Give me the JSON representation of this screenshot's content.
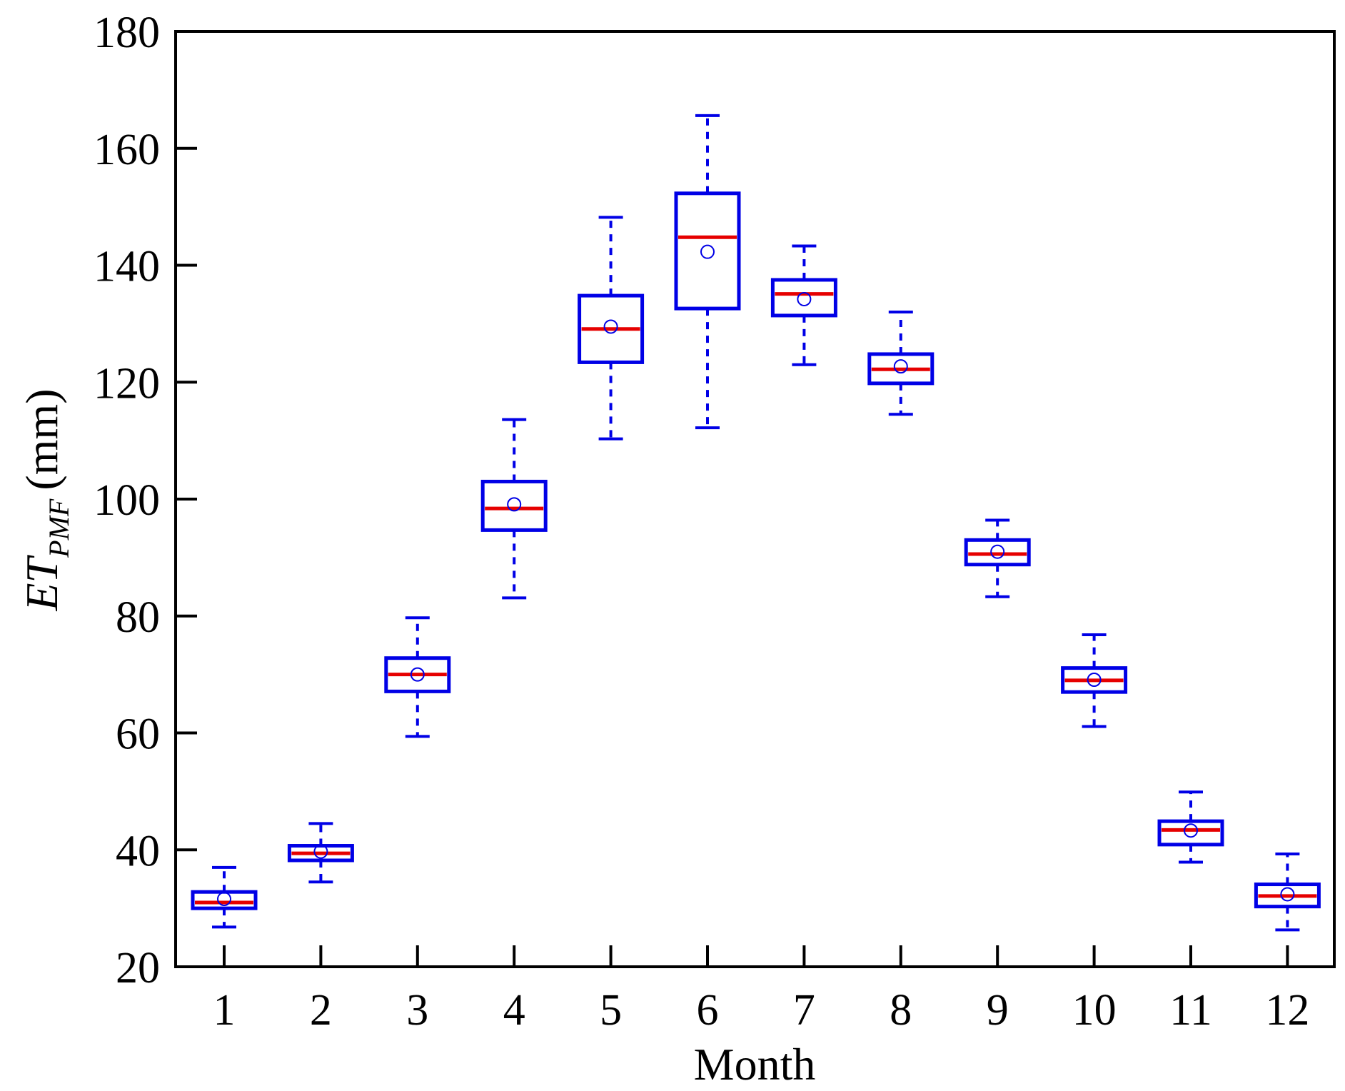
{
  "chart_data": {
    "type": "box",
    "title": "",
    "xlabel": "Month",
    "ylabel": {
      "main": "ET",
      "subscript": "PMF",
      "unit": "(mm)"
    },
    "ylim": [
      20,
      180
    ],
    "yticks": [
      20,
      40,
      60,
      80,
      100,
      120,
      140,
      160,
      180
    ],
    "categories": [
      "1",
      "2",
      "3",
      "4",
      "5",
      "6",
      "7",
      "8",
      "9",
      "10",
      "11",
      "12"
    ],
    "series": [
      {
        "name": "1",
        "min": 26.8,
        "q1": 30.0,
        "median": 31.0,
        "q3": 32.8,
        "max": 37.0,
        "mean": 31.6
      },
      {
        "name": "2",
        "min": 34.5,
        "q1": 38.2,
        "median": 39.4,
        "q3": 40.7,
        "max": 44.5,
        "mean": 39.7
      },
      {
        "name": "3",
        "min": 59.4,
        "q1": 67.1,
        "median": 70.0,
        "q3": 72.8,
        "max": 79.7,
        "mean": 70.0
      },
      {
        "name": "4",
        "min": 83.1,
        "q1": 94.7,
        "median": 98.4,
        "q3": 103.0,
        "max": 113.6,
        "mean": 99.1
      },
      {
        "name": "5",
        "min": 110.3,
        "q1": 123.4,
        "median": 129.1,
        "q3": 134.8,
        "max": 148.2,
        "mean": 129.5
      },
      {
        "name": "6",
        "min": 112.2,
        "q1": 132.6,
        "median": 144.8,
        "q3": 152.3,
        "max": 165.6,
        "mean": 142.3
      },
      {
        "name": "7",
        "min": 123.0,
        "q1": 131.4,
        "median": 135.1,
        "q3": 137.5,
        "max": 143.3,
        "mean": 134.2
      },
      {
        "name": "8",
        "min": 114.5,
        "q1": 119.8,
        "median": 122.2,
        "q3": 124.8,
        "max": 132.0,
        "mean": 122.7
      },
      {
        "name": "9",
        "min": 83.3,
        "q1": 88.8,
        "median": 90.6,
        "q3": 93.0,
        "max": 96.4,
        "mean": 91.0
      },
      {
        "name": "10",
        "min": 61.1,
        "q1": 67.0,
        "median": 69.0,
        "q3": 71.1,
        "max": 76.8,
        "mean": 69.1
      },
      {
        "name": "11",
        "min": 37.9,
        "q1": 40.9,
        "median": 43.4,
        "q3": 44.9,
        "max": 49.9,
        "mean": 43.3
      },
      {
        "name": "12",
        "min": 26.3,
        "q1": 30.3,
        "median": 32.1,
        "q3": 34.1,
        "max": 39.3,
        "mean": 32.4
      }
    ],
    "colors": {
      "box": "#0000e6",
      "whisker": "#0000e6",
      "median": "#e60000",
      "mean_marker": "#0000e6",
      "axis": "#000000"
    },
    "grid": false,
    "legend": "none"
  }
}
